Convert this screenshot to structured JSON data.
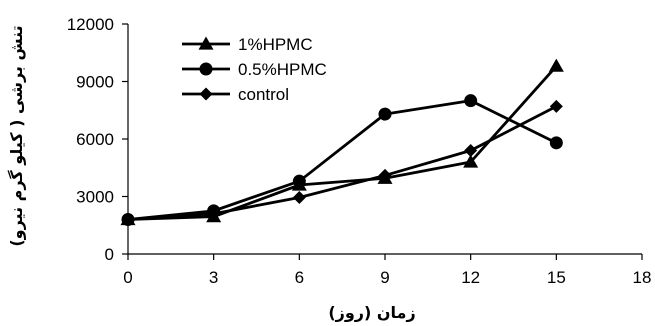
{
  "chart_data": {
    "type": "line",
    "xlabel": "زمان (روز)",
    "ylabel": "تنش برشی ( کیلو گرم نیرو)",
    "xlim": [
      0,
      18
    ],
    "ylim": [
      0,
      12000
    ],
    "x_ticks": [
      "0",
      "3",
      "6",
      "9",
      "12",
      "15",
      "18"
    ],
    "y_ticks": [
      "0",
      "3000",
      "6000",
      "9000",
      "12000"
    ],
    "x": [
      0,
      3,
      6,
      9,
      12,
      15
    ],
    "series": [
      {
        "name": "1%HPMC",
        "marker": "triangle",
        "values": [
          1800,
          1950,
          3600,
          3950,
          4800,
          9800
        ]
      },
      {
        "name": "0.5%HPMC",
        "marker": "circle",
        "values": [
          1800,
          2250,
          3800,
          7300,
          8000,
          5800
        ]
      },
      {
        "name": "control",
        "marker": "diamond",
        "values": [
          1800,
          2100,
          2950,
          4100,
          5400,
          7700
        ]
      }
    ],
    "legend_position": "top-left",
    "grid": false,
    "color": "#000000"
  }
}
